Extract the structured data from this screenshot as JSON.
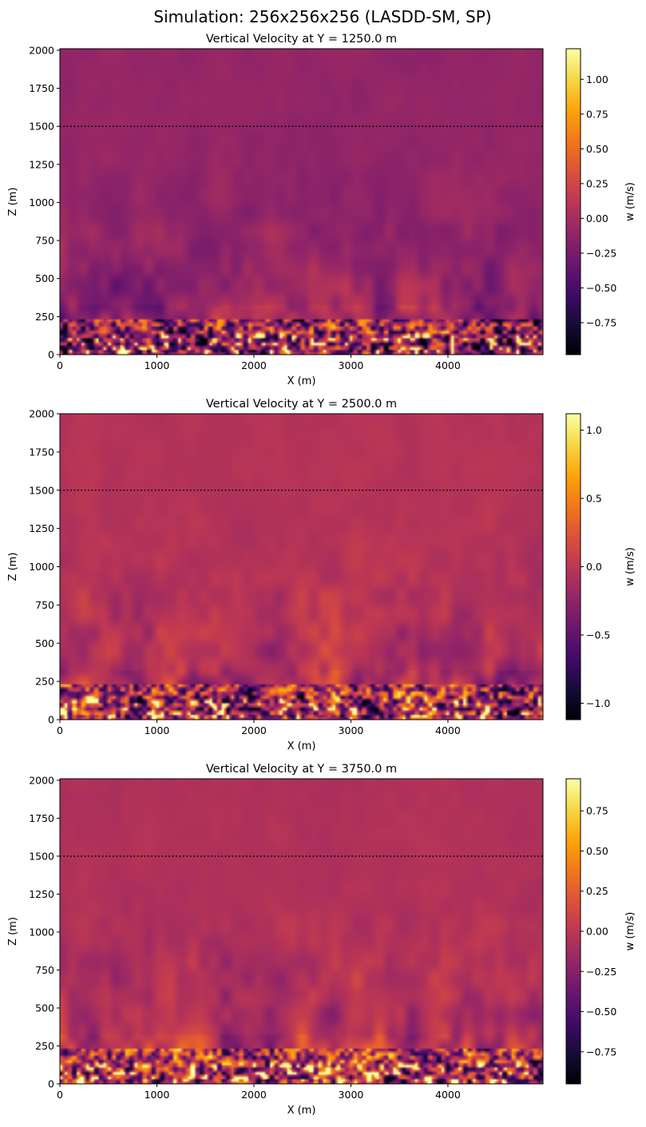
{
  "figure": {
    "title": "Simulation: 256x256x256 (LASDD-SM, SP)"
  },
  "chart_data": [
    {
      "type": "heatmap",
      "title": "Vertical Velocity at Y = 1250.0 m",
      "xlabel": "X (m)",
      "ylabel": "Z (m)",
      "xlim": [
        0,
        4980
      ],
      "ylim": [
        0,
        2010
      ],
      "x_ticks": [
        "0",
        "1000",
        "2000",
        "3000",
        "4000"
      ],
      "y_ticks": [
        "0",
        "250",
        "500",
        "750",
        "1000",
        "1250",
        "1500",
        "1750",
        "2000"
      ],
      "reference_line": {
        "z": 1500,
        "style": "dotted"
      },
      "colormap": "inferno",
      "colorbar": {
        "label": "w (m/s)",
        "range": [
          -0.98,
          1.22
        ],
        "ticks": [
          "1.00",
          "0.75",
          "0.50",
          "0.25",
          "0.00",
          "−0.25",
          "−0.50",
          "−0.75"
        ]
      }
    },
    {
      "type": "heatmap",
      "title": "Vertical Velocity at Y = 2500.0 m",
      "xlabel": "X (m)",
      "ylabel": "Z (m)",
      "xlim": [
        0,
        4980
      ],
      "ylim": [
        0,
        2000
      ],
      "x_ticks": [
        "0",
        "1000",
        "2000",
        "3000",
        "4000"
      ],
      "y_ticks": [
        "0",
        "250",
        "500",
        "750",
        "1000",
        "1250",
        "1500",
        "1750",
        "2000"
      ],
      "reference_line": {
        "z": 1500,
        "style": "dotted"
      },
      "colormap": "inferno",
      "colorbar": {
        "label": "w (m/s)",
        "range": [
          -1.12,
          1.12
        ],
        "ticks": [
          "1.0",
          "0.5",
          "0.0",
          "−0.5",
          "−1.0"
        ]
      }
    },
    {
      "type": "heatmap",
      "title": "Vertical Velocity at Y = 3750.0 m",
      "xlabel": "X (m)",
      "ylabel": "Z (m)",
      "xlim": [
        0,
        4980
      ],
      "ylim": [
        0,
        2010
      ],
      "x_ticks": [
        "0",
        "1000",
        "2000",
        "3000",
        "4000"
      ],
      "y_ticks": [
        "0",
        "250",
        "500",
        "750",
        "1000",
        "1250",
        "1500",
        "1750",
        "2000"
      ],
      "reference_line": {
        "z": 1500,
        "style": "dotted"
      },
      "colormap": "inferno",
      "colorbar": {
        "label": "w (m/s)",
        "range": [
          -0.95,
          0.95
        ],
        "ticks": [
          "0.75",
          "0.50",
          "0.25",
          "0.00",
          "−0.25",
          "−0.50",
          "−0.75"
        ]
      }
    }
  ]
}
